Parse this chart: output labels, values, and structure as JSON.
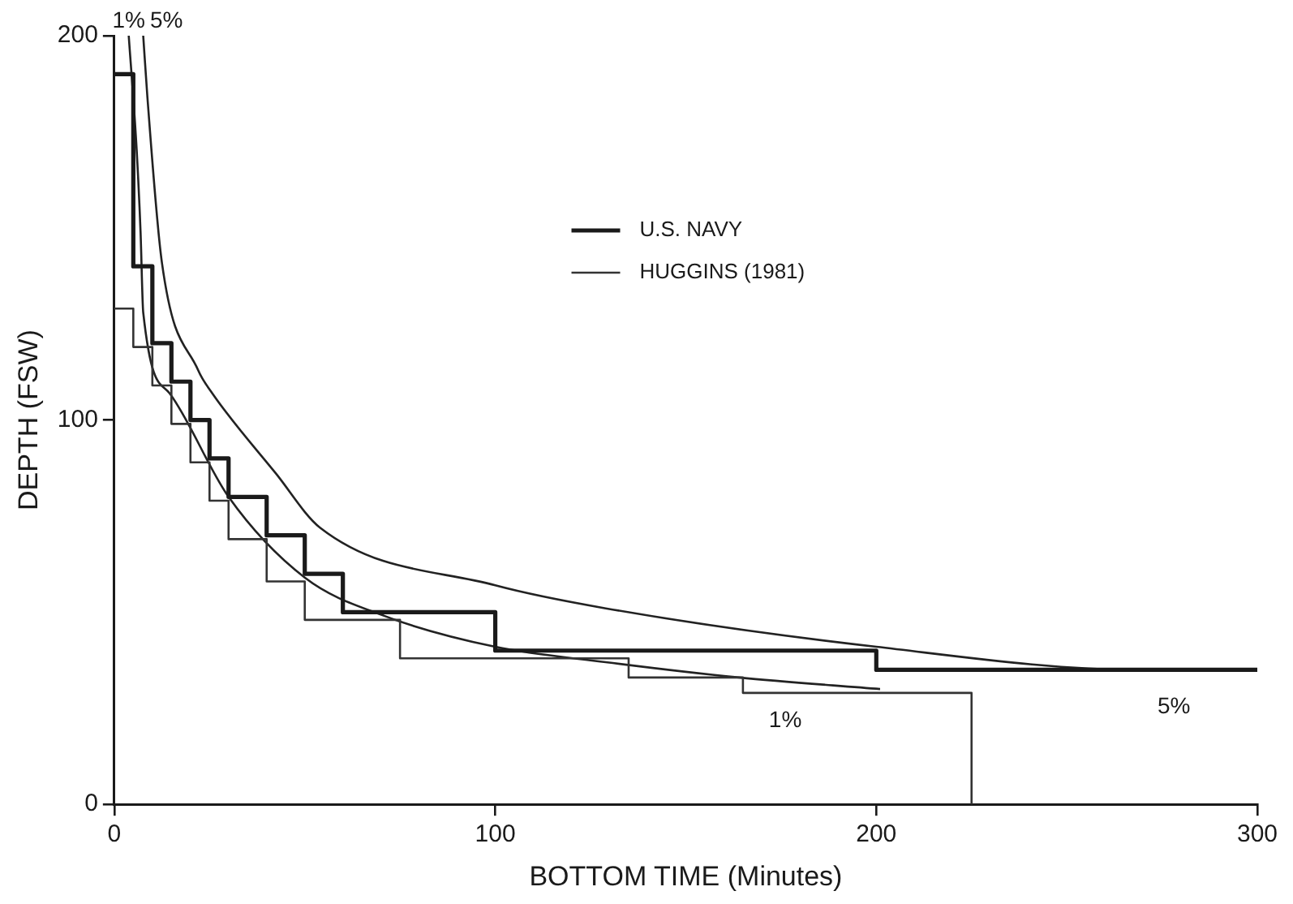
{
  "chart_data": {
    "type": "line",
    "xlabel": "BOTTOM TIME (Minutes)",
    "ylabel": "DEPTH (FSW)",
    "xlim": [
      0,
      300
    ],
    "xticks": [
      0,
      100,
      200,
      300
    ],
    "ylim": [
      0,
      200
    ],
    "yticks": [
      0,
      100,
      200
    ],
    "grid": false,
    "legend": "top",
    "marker": "none",
    "series": [
      {
        "name": "U.S. NAVY",
        "type": "step",
        "color": "#1a1a1a",
        "x": [
          0,
          5,
          10,
          15,
          20,
          25,
          30,
          40,
          50,
          60,
          100,
          200,
          300
        ],
        "values": [
          190,
          140,
          120,
          110,
          100,
          90,
          80,
          70,
          60,
          50,
          40,
          35,
          35
        ]
      },
      {
        "name": "HUGGINS (1981)",
        "type": "step",
        "color": "#333333",
        "x": [
          0,
          5,
          10,
          15,
          20,
          25,
          30,
          40,
          50,
          75,
          135,
          165,
          225
        ],
        "values": [
          129,
          119,
          109,
          99,
          89,
          79,
          69,
          58,
          48,
          38,
          33,
          29,
          0
        ]
      },
      {
        "name": "1%",
        "color": "#222222",
        "x": [
          3.8,
          5.9,
          6.9,
          7.6,
          14.5,
          30,
          50,
          71,
          100,
          129,
          164,
          201
        ],
        "values": [
          200,
          170,
          149,
          128,
          107,
          80,
          59,
          49,
          41,
          37,
          33,
          30
        ]
      },
      {
        "name": "5%",
        "color": "#222222",
        "x": [
          7.6,
          8.7,
          12.5,
          22,
          25.7,
          42.5,
          54,
          100,
          129,
          200,
          269,
          300
        ],
        "values": [
          200,
          184,
          141,
          113,
          107,
          86,
          72,
          57,
          51,
          41,
          35,
          35
        ]
      }
    ]
  }
}
